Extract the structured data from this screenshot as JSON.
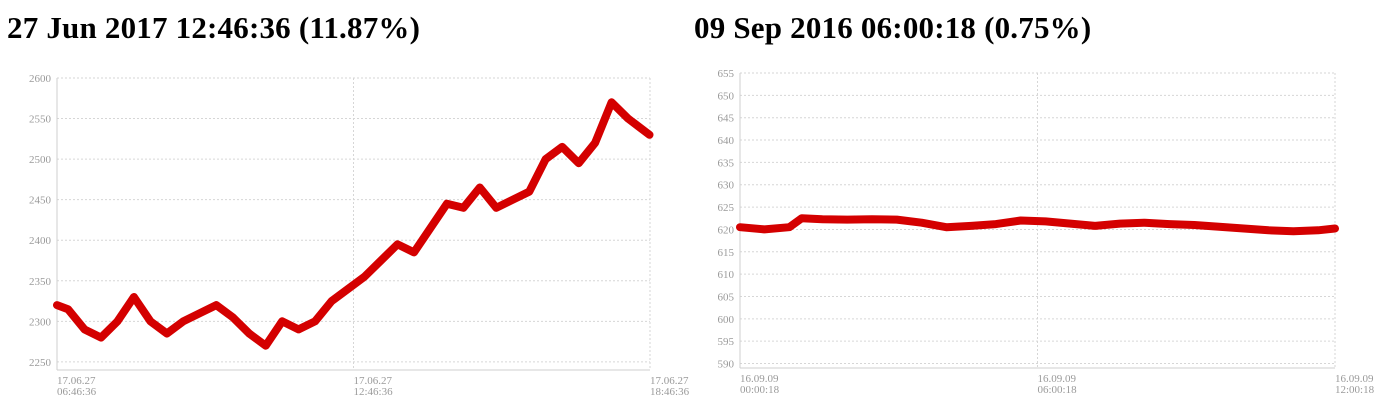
{
  "charts": [
    {
      "title": "27 Jun 2017 12:46:36 (11.87%)",
      "color": "#d40000",
      "chart_data": {
        "type": "line",
        "title": "27 Jun 2017 12:46:36 (11.87%)",
        "xlabel": "",
        "ylabel": "",
        "ylim": [
          2240,
          2600
        ],
        "yticks": [
          2250,
          2300,
          2350,
          2400,
          2450,
          2500,
          2550,
          2600
        ],
        "xticks": [
          {
            "date": "17.06.27",
            "time": "06:46:36"
          },
          {
            "date": "17.06.27",
            "time": "12:46:36"
          },
          {
            "date": "17.06.27",
            "time": "18:46:36"
          }
        ],
        "xlim": [
          "06:46:36",
          "18:46:36"
        ],
        "grid": true,
        "series": [
          {
            "x": [
              "06:46:36",
              "07:00",
              "07:20",
              "07:40",
              "08:00",
              "08:20",
              "08:40",
              "09:00",
              "09:20",
              "09:40",
              "10:00",
              "10:20",
              "10:40",
              "11:00",
              "11:20",
              "11:40",
              "12:00",
              "12:20",
              "12:40",
              "13:00",
              "13:20",
              "13:40",
              "14:00",
              "14:20",
              "14:40",
              "15:00",
              "15:20",
              "15:40",
              "16:00",
              "16:20",
              "16:40",
              "17:00",
              "17:20",
              "17:40",
              "18:00",
              "18:20",
              "18:46"
            ],
            "y": [
              2320,
              2315,
              2290,
              2280,
              2300,
              2330,
              2300,
              2285,
              2300,
              2310,
              2320,
              2305,
              2285,
              2270,
              2300,
              2290,
              2300,
              2325,
              2340,
              2355,
              2375,
              2395,
              2385,
              2415,
              2445,
              2440,
              2465,
              2440,
              2450,
              2460,
              2500,
              2515,
              2495,
              2520,
              2570,
              2550,
              2530
            ]
          }
        ]
      }
    },
    {
      "title": "09 Sep 2016 06:00:18 (0.75%)",
      "color": "#d40000",
      "chart_data": {
        "type": "line",
        "title": "09 Sep 2016 06:00:18 (0.75%)",
        "xlabel": "",
        "ylabel": "",
        "ylim": [
          589,
          655
        ],
        "yticks": [
          590,
          595,
          600,
          605,
          610,
          615,
          620,
          625,
          630,
          635,
          640,
          645,
          650,
          655
        ],
        "xticks": [
          {
            "date": "16.09.09",
            "time": "00:00:18"
          },
          {
            "date": "16.09.09",
            "time": "06:00:18"
          },
          {
            "date": "16.09.09",
            "time": "12:00:18"
          }
        ],
        "xlim": [
          "00:00:18",
          "12:00:18"
        ],
        "grid": true,
        "series": [
          {
            "x": [
              "00:00:18",
              "00:30",
              "01:00",
              "01:15",
              "01:40",
              "02:10",
              "02:40",
              "03:10",
              "03:40",
              "04:10",
              "04:40",
              "05:10",
              "05:40",
              "06:10",
              "06:40",
              "07:10",
              "07:40",
              "08:10",
              "08:40",
              "09:10",
              "09:40",
              "10:10",
              "10:40",
              "11:10",
              "11:40",
              "12:00:18"
            ],
            "y": [
              620.5,
              620,
              620.5,
              622.5,
              622.3,
              622.2,
              622.3,
              622.2,
              621.5,
              620.5,
              620.8,
              621.2,
              622,
              621.8,
              621.3,
              620.8,
              621.3,
              621.5,
              621.2,
              621,
              620.6,
              620.2,
              619.8,
              619.6,
              619.8,
              620.2
            ]
          }
        ]
      }
    }
  ]
}
